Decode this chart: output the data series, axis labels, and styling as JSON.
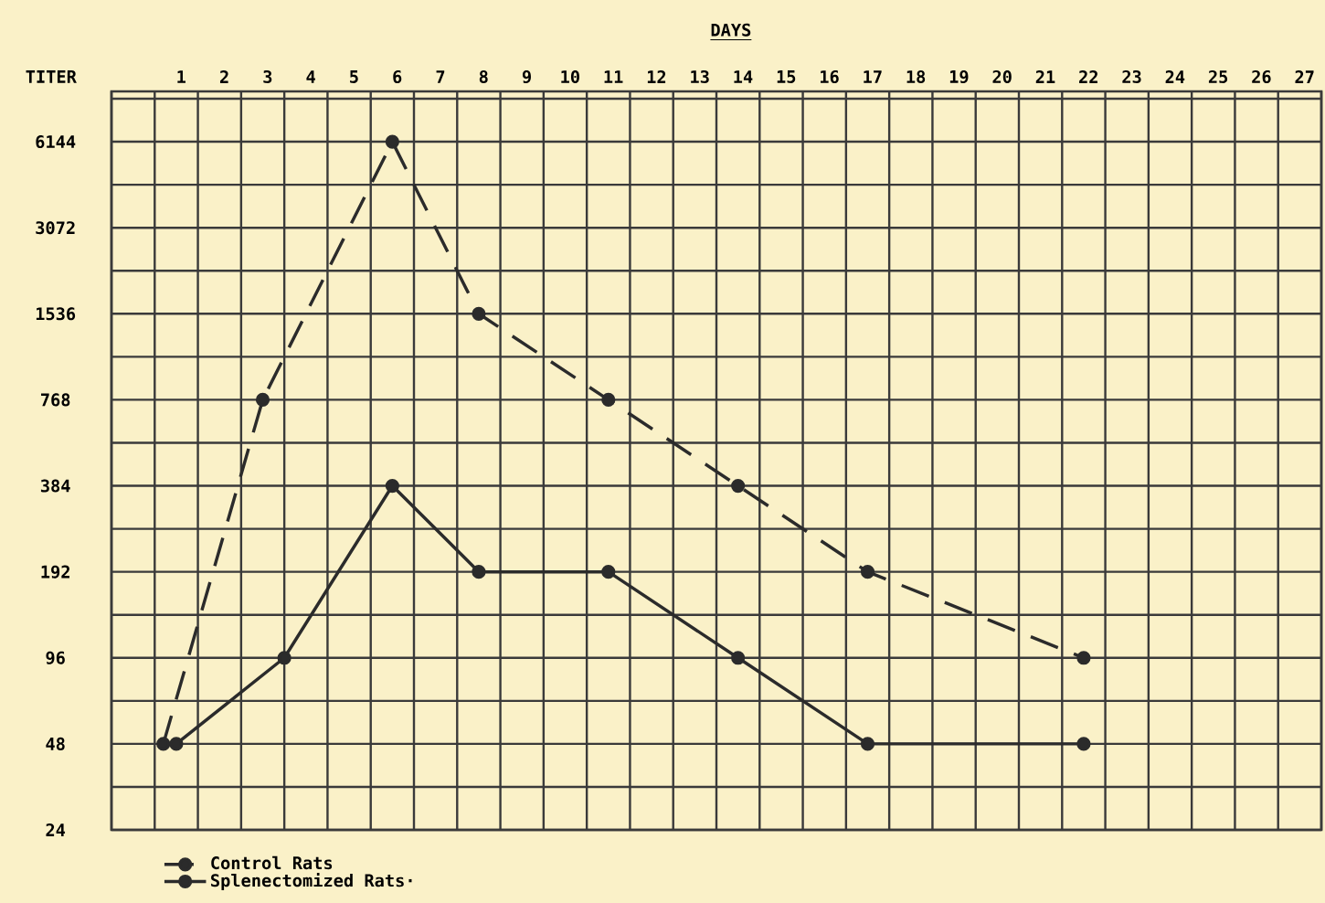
{
  "chart_data": {
    "type": "line",
    "xlabel": "DAYS",
    "ylabel": "TITER",
    "xlim": [
      -0.5,
      27.5
    ],
    "xticks": [
      1,
      2,
      3,
      4,
      5,
      6,
      7,
      8,
      9,
      10,
      11,
      12,
      13,
      14,
      15,
      16,
      17,
      18,
      19,
      20,
      21,
      22,
      23,
      24,
      25,
      26,
      27
    ],
    "ylim": [
      24,
      9216
    ],
    "yticks": [
      24,
      48,
      96,
      192,
      384,
      768,
      1536,
      3072,
      6144
    ],
    "log": "y",
    "grid": true,
    "legend": "bottom",
    "marker": "circle",
    "series": [
      {
        "name": "Control Rats",
        "color": "#2b2b2b",
        "line_style": "dashed",
        "x": [
          0.7,
          3,
          6,
          8,
          11,
          14,
          17,
          22
        ],
        "values": [
          48,
          768,
          6144,
          1536,
          768,
          384,
          192,
          96
        ]
      },
      {
        "name": "Splenectomized Rats·",
        "color": "#2b2b2b",
        "line_style": "solid",
        "x": [
          1,
          3.5,
          6,
          8,
          11,
          14,
          17,
          22
        ],
        "values": [
          48,
          96,
          384,
          192,
          192,
          96,
          48,
          48
        ]
      }
    ]
  }
}
